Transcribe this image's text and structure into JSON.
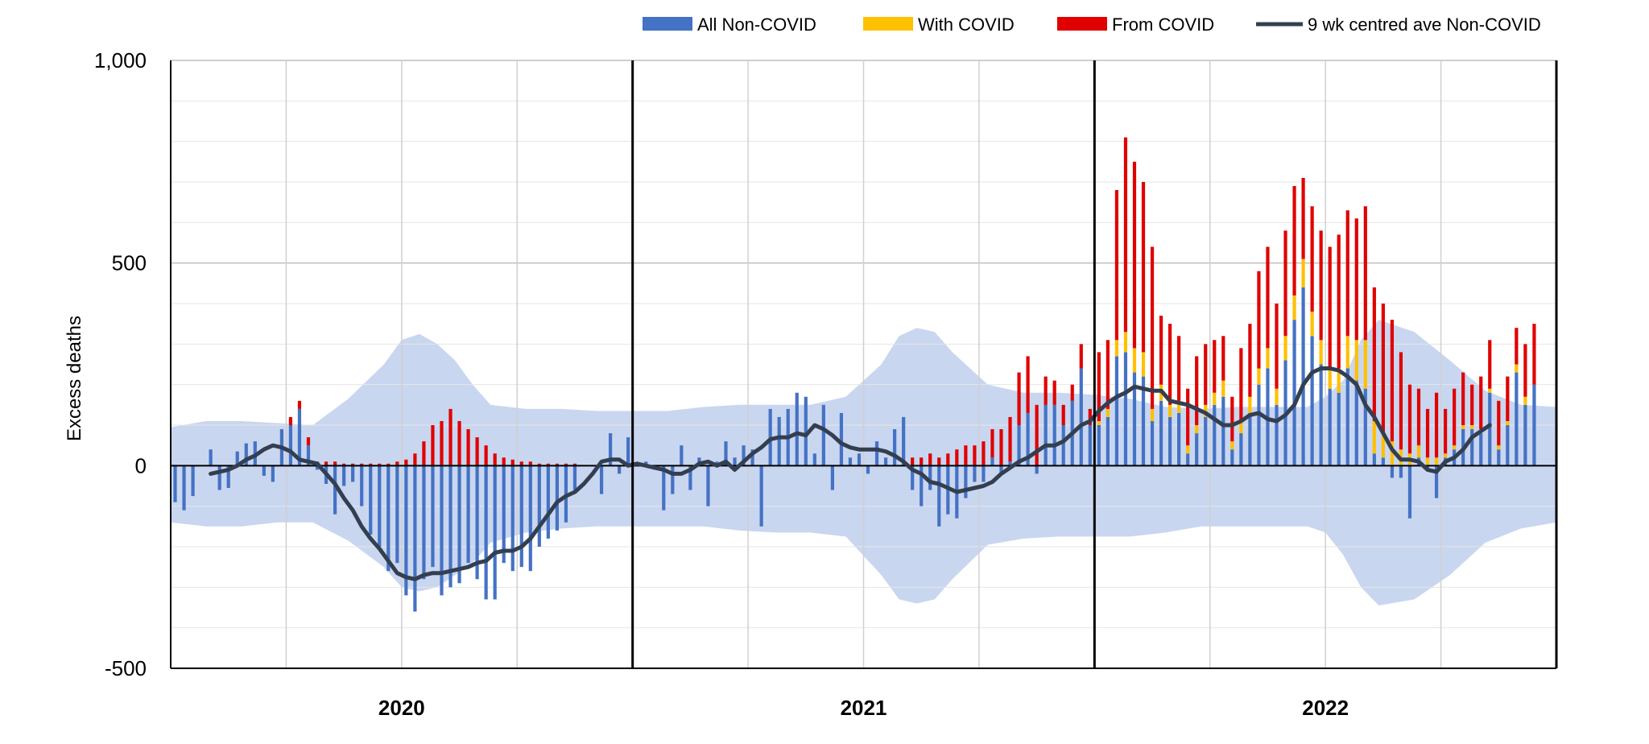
{
  "chart_data": {
    "type": "bar",
    "stacked": true,
    "ylabel": "Excess deaths",
    "ylim": [
      -500,
      1000
    ],
    "yticks": [
      {
        "value": -500,
        "label": "-500"
      },
      {
        "value": 0,
        "label": "0"
      },
      {
        "value": 500,
        "label": "500"
      },
      {
        "value": 1000,
        "label": "1,000"
      }
    ],
    "x_unit": "week",
    "year_labels": [
      {
        "label": "2020",
        "start_week": 0,
        "end_week": 52
      },
      {
        "label": "2021",
        "start_week": 52,
        "end_week": 104
      },
      {
        "label": "2022",
        "start_week": 104,
        "end_week": 156
      }
    ],
    "legend": {
      "position": "top-right",
      "entries": [
        {
          "label": "All Non-COVID",
          "color": "#4472c4",
          "kind": "box"
        },
        {
          "label": "With COVID",
          "color": "#ffc000",
          "kind": "box"
        },
        {
          "label": "From COVID",
          "color": "#e00000",
          "kind": "box"
        },
        {
          "label": "9 wk centred ave Non-COVID",
          "color": "#333f50",
          "kind": "line"
        }
      ]
    },
    "colors": {
      "non_covid": "#4472c4",
      "with_covid": "#ffc000",
      "from_covid": "#e00000",
      "average_line": "#333f50",
      "band": "#c9d6f0",
      "grid": "#d0d0d0",
      "year_divider": "#000000"
    },
    "grid": true,
    "band": {
      "name": "expected range",
      "weeks": [
        0,
        4,
        8,
        12,
        16,
        20,
        24,
        26,
        28,
        30,
        32,
        34,
        36,
        40,
        44,
        48,
        52,
        56,
        60,
        64,
        68,
        72,
        76,
        80,
        82,
        84,
        86,
        88,
        92,
        96,
        100,
        104,
        108,
        112,
        116,
        120,
        124,
        128,
        130,
        132,
        134,
        136,
        140,
        144,
        148,
        152,
        156
      ],
      "upper": [
        95,
        110,
        110,
        105,
        100,
        165,
        250,
        310,
        325,
        300,
        260,
        200,
        150,
        140,
        140,
        135,
        135,
        135,
        145,
        150,
        150,
        150,
        170,
        250,
        320,
        340,
        330,
        280,
        200,
        180,
        180,
        175,
        165,
        145,
        140,
        145,
        145,
        145,
        170,
        210,
        310,
        360,
        330,
        260,
        185,
        150,
        145
      ],
      "lower": [
        -140,
        -150,
        -150,
        -140,
        -140,
        -185,
        -250,
        -300,
        -310,
        -300,
        -270,
        -240,
        -190,
        -165,
        -155,
        -150,
        -150,
        -150,
        -150,
        -160,
        -165,
        -165,
        -175,
        -270,
        -330,
        -340,
        -330,
        -280,
        -195,
        -180,
        -175,
        -175,
        -175,
        -165,
        -150,
        -150,
        -150,
        -150,
        -165,
        -220,
        -300,
        -345,
        -330,
        -270,
        -190,
        -155,
        -140
      ]
    },
    "series": [
      {
        "name": "All Non-COVID",
        "key": "non_covid",
        "values": [
          -90,
          -110,
          -75,
          0,
          40,
          -60,
          -55,
          35,
          55,
          60,
          -25,
          -40,
          90,
          100,
          140,
          50,
          -10,
          -45,
          -120,
          -50,
          -40,
          -100,
          -170,
          -200,
          -260,
          -240,
          -320,
          -360,
          -280,
          -250,
          -320,
          -300,
          -290,
          -240,
          -280,
          -330,
          -330,
          -240,
          -260,
          -250,
          -260,
          -200,
          -180,
          -160,
          -140,
          -60,
          0,
          0,
          -70,
          80,
          -20,
          70,
          0,
          10,
          -10,
          -110,
          -70,
          50,
          -60,
          20,
          -100,
          10,
          60,
          20,
          50,
          40,
          -150,
          140,
          120,
          140,
          180,
          170,
          30,
          150,
          -60,
          130,
          20,
          30,
          -20,
          60,
          20,
          90,
          120,
          -60,
          -100,
          -60,
          -150,
          -120,
          -130,
          -80,
          -40,
          -40,
          20,
          -20,
          10,
          100,
          130,
          -20,
          150,
          150,
          100,
          160,
          240,
          100,
          100,
          120,
          270,
          280,
          230,
          220,
          110,
          160,
          120,
          130,
          30,
          80,
          120,
          150,
          170,
          40,
          80,
          130,
          200,
          240,
          150,
          260,
          360,
          440,
          320,
          250,
          190,
          180,
          240,
          210,
          190,
          30,
          20,
          -30,
          -30,
          -130,
          20,
          -10,
          -80,
          20,
          40,
          90,
          90,
          80,
          180,
          40,
          100,
          230,
          150,
          200
        ]
      },
      {
        "name": "With COVID",
        "key": "with_covid",
        "values": [
          0,
          0,
          0,
          0,
          0,
          0,
          0,
          0,
          0,
          0,
          0,
          0,
          0,
          0,
          0,
          0,
          0,
          0,
          0,
          0,
          0,
          0,
          0,
          0,
          0,
          0,
          0,
          0,
          0,
          0,
          0,
          0,
          0,
          0,
          0,
          0,
          0,
          0,
          0,
          0,
          0,
          0,
          0,
          0,
          0,
          0,
          0,
          0,
          0,
          0,
          0,
          0,
          0,
          0,
          0,
          0,
          0,
          0,
          0,
          0,
          0,
          0,
          0,
          0,
          0,
          0,
          0,
          0,
          0,
          0,
          0,
          0,
          0,
          0,
          0,
          0,
          0,
          0,
          0,
          0,
          0,
          0,
          0,
          0,
          0,
          0,
          0,
          0,
          0,
          0,
          0,
          0,
          0,
          0,
          0,
          0,
          0,
          0,
          0,
          0,
          0,
          0,
          0,
          0,
          10,
          20,
          40,
          50,
          60,
          60,
          30,
          40,
          30,
          30,
          20,
          20,
          30,
          30,
          40,
          20,
          30,
          40,
          40,
          50,
          40,
          60,
          60,
          70,
          60,
          60,
          50,
          60,
          80,
          100,
          120,
          80,
          60,
          60,
          40,
          30,
          30,
          20,
          20,
          10,
          10,
          10,
          10,
          10,
          10,
          10,
          10,
          20,
          20
        ]
      },
      {
        "name": "From COVID",
        "key": "from_covid",
        "values": [
          0,
          0,
          0,
          0,
          0,
          0,
          0,
          0,
          0,
          0,
          0,
          0,
          0,
          20,
          20,
          20,
          10,
          10,
          10,
          5,
          5,
          5,
          5,
          5,
          5,
          10,
          15,
          30,
          60,
          100,
          110,
          140,
          110,
          90,
          70,
          50,
          30,
          20,
          15,
          10,
          10,
          5,
          5,
          5,
          5,
          5,
          0,
          0,
          0,
          0,
          0,
          0,
          0,
          0,
          0,
          0,
          0,
          0,
          0,
          0,
          0,
          0,
          0,
          0,
          0,
          0,
          0,
          0,
          0,
          0,
          0,
          0,
          0,
          0,
          0,
          0,
          0,
          0,
          0,
          0,
          0,
          0,
          0,
          20,
          20,
          30,
          20,
          30,
          40,
          50,
          50,
          60,
          70,
          90,
          110,
          130,
          140,
          150,
          70,
          60,
          50,
          40,
          60,
          40,
          170,
          170,
          370,
          480,
          460,
          420,
          400,
          170,
          200,
          160,
          140,
          170,
          150,
          130,
          110,
          110,
          180,
          180,
          240,
          250,
          210,
          260,
          270,
          200,
          260,
          270,
          300,
          330,
          310,
          300,
          330,
          330,
          320,
          300,
          240,
          170,
          140,
          120,
          160,
          110,
          140,
          130,
          100,
          130,
          120,
          110,
          110,
          90,
          130,
          150
        ]
      },
      {
        "name": "9 wk centred ave Non-COVID",
        "key": "average_line",
        "type": "line",
        "start_week": 4,
        "values": [
          -20,
          -15,
          -10,
          0,
          15,
          25,
          40,
          50,
          45,
          35,
          15,
          10,
          5,
          -20,
          -45,
          -80,
          -110,
          -150,
          -180,
          -205,
          -235,
          -265,
          -275,
          -280,
          -270,
          -265,
          -265,
          -260,
          -255,
          -250,
          -240,
          -235,
          -215,
          -210,
          -210,
          -200,
          -180,
          -150,
          -120,
          -90,
          -75,
          -65,
          -45,
          -20,
          10,
          15,
          15,
          0,
          5,
          0,
          -5,
          -10,
          -20,
          -20,
          -10,
          5,
          10,
          0,
          10,
          -10,
          10,
          30,
          45,
          65,
          70,
          70,
          80,
          75,
          100,
          90,
          75,
          55,
          45,
          40,
          40,
          40,
          35,
          25,
          10,
          -10,
          -20,
          -40,
          -45,
          -55,
          -65,
          -60,
          -55,
          -50,
          -40,
          -20,
          -5,
          10,
          20,
          35,
          50,
          50,
          60,
          80,
          100,
          110,
          135,
          155,
          170,
          180,
          195,
          190,
          185,
          185,
          160,
          155,
          150,
          140,
          130,
          115,
          100,
          100,
          110,
          125,
          130,
          115,
          110,
          125,
          150,
          200,
          230,
          240,
          240,
          235,
          220,
          200,
          150,
          120,
          80,
          40,
          15,
          15,
          10,
          -10,
          -15,
          10,
          20,
          40,
          70,
          85,
          100
        ]
      }
    ]
  }
}
